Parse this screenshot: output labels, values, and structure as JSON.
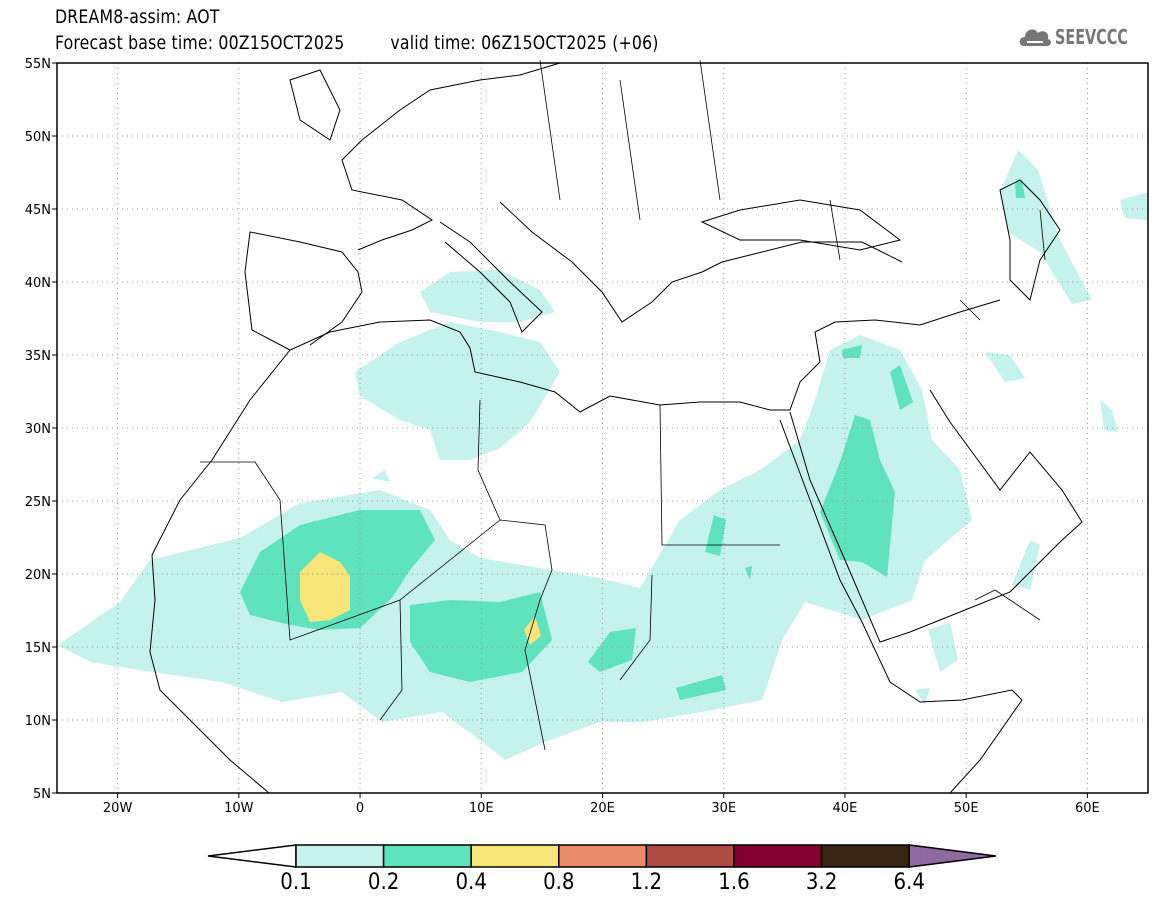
{
  "header": {
    "title": "DREAM8-assim: AOT",
    "base_time": "Forecast base time: 00Z15OCT2025",
    "valid_time": "valid time: 06Z15OCT2025 (+06)"
  },
  "logo": {
    "text": "SEEVCCC",
    "icon": "cloud-icon"
  },
  "map": {
    "lat_labels": [
      {
        "value": 55,
        "label": "55N"
      },
      {
        "value": 50,
        "label": "50N"
      },
      {
        "value": 45,
        "label": "45N"
      },
      {
        "value": 40,
        "label": "40N"
      },
      {
        "value": 35,
        "label": "35N"
      },
      {
        "value": 30,
        "label": "30N"
      },
      {
        "value": 25,
        "label": "25N"
      },
      {
        "value": 20,
        "label": "20N"
      },
      {
        "value": 15,
        "label": "15N"
      },
      {
        "value": 10,
        "label": "10N"
      },
      {
        "value": 5,
        "label": "5N"
      }
    ],
    "lon_labels": [
      {
        "value": -20,
        "label": "20W"
      },
      {
        "value": -10,
        "label": "10W"
      },
      {
        "value": 0,
        "label": "0"
      },
      {
        "value": 10,
        "label": "10E"
      },
      {
        "value": 20,
        "label": "20E"
      },
      {
        "value": 30,
        "label": "30E"
      },
      {
        "value": 40,
        "label": "40E"
      },
      {
        "value": 50,
        "label": "50E"
      },
      {
        "value": 60,
        "label": "60E"
      }
    ],
    "lon_range": [
      -25,
      65
    ],
    "lat_range": [
      5,
      55
    ]
  },
  "colorbar": {
    "levels": [
      "0.1",
      "0.2",
      "0.4",
      "0.8",
      "1.2",
      "1.6",
      "3.2",
      "6.4"
    ],
    "colors": [
      "#ffffff",
      "#c6f2ec",
      "#5ee3bd",
      "#f8e57a",
      "#e88a68",
      "#ab4b42",
      "#820030",
      "#3a2413",
      "#8e6aa0"
    ]
  }
}
